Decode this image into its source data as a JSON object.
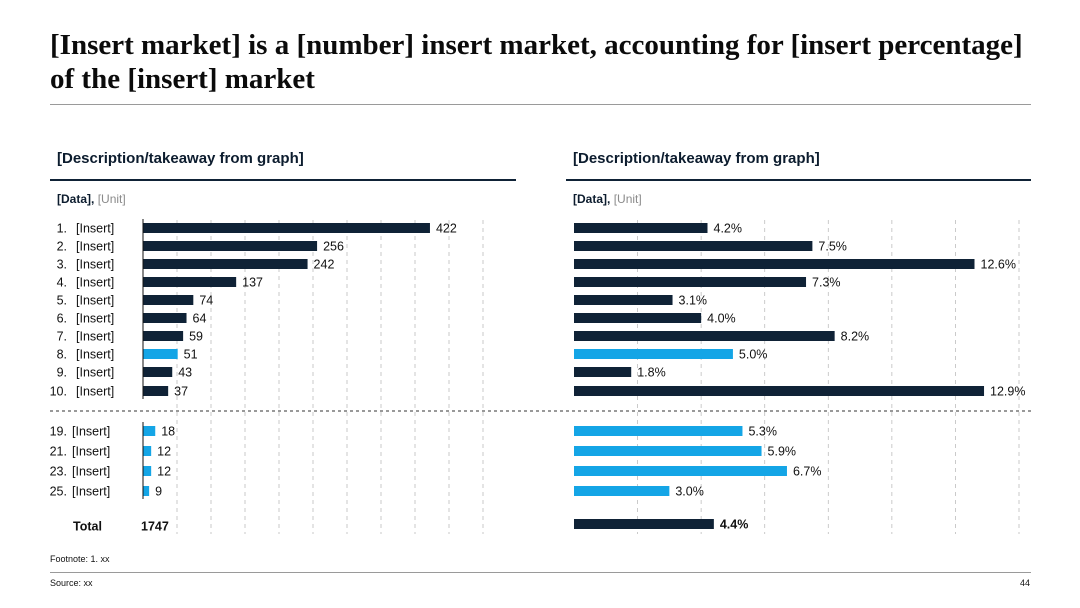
{
  "page": {
    "title": "[Insert market] is a [number] insert market, accounting for [insert percentage] of the [insert] market",
    "footnote": "Footnote: 1. xx",
    "source": "Source: xx",
    "page_number": "44"
  },
  "colors": {
    "navy": "#0f2236",
    "highlight": "#14a5e6"
  },
  "chart_data": [
    {
      "type": "bar",
      "orientation": "horizontal",
      "title": "[Description/takeaway from graph]",
      "data_label": "[Data],",
      "unit_label": "[Unit]",
      "rank_labels": [
        "1.",
        "2.",
        "3.",
        "4.",
        "5.",
        "6.",
        "7.",
        "8.",
        "9.",
        "10.",
        "19.",
        "21.",
        "23.",
        "25."
      ],
      "categories": [
        "[Insert]",
        "[Insert]",
        "[Insert]",
        "[Insert]",
        "[Insert]",
        "[Insert]",
        "[Insert]",
        "[Insert]",
        "[Insert]",
        "[Insert]",
        "[Insert]",
        "[Insert]",
        "[Insert]",
        "[Insert]"
      ],
      "values": [
        422,
        256,
        242,
        137,
        74,
        64,
        59,
        51,
        43,
        37,
        18,
        12,
        12,
        9
      ],
      "value_labels": [
        "422",
        "256",
        "242",
        "137",
        "74",
        "64",
        "59",
        "51",
        "43",
        "37",
        "18",
        "12",
        "12",
        "9"
      ],
      "highlighted": [
        false,
        false,
        false,
        false,
        false,
        false,
        false,
        true,
        false,
        false,
        true,
        true,
        true,
        true
      ],
      "xlim": [
        0,
        500
      ],
      "grid": true,
      "total_label": "Total",
      "total_value": "1747"
    },
    {
      "type": "bar",
      "orientation": "horizontal",
      "title": "[Description/takeaway from graph]",
      "data_label": "[Data],",
      "unit_label": "[Unit]",
      "values": [
        4.2,
        7.5,
        12.6,
        7.3,
        3.1,
        4.0,
        8.2,
        5.0,
        1.8,
        12.9,
        5.3,
        5.9,
        6.7,
        3.0
      ],
      "value_labels": [
        "4.2%",
        "7.5%",
        "12.6%",
        "7.3%",
        "3.1%",
        "4.0%",
        "8.2%",
        "5.0%",
        "1.8%",
        "12.9%",
        "5.3%",
        "5.9%",
        "6.7%",
        "3.0%"
      ],
      "highlighted": [
        false,
        false,
        false,
        false,
        false,
        false,
        false,
        true,
        false,
        false,
        true,
        true,
        true,
        true
      ],
      "xlim": [
        0,
        14
      ],
      "grid": true,
      "total_value": 4.4,
      "total_label": "4.4%"
    }
  ]
}
